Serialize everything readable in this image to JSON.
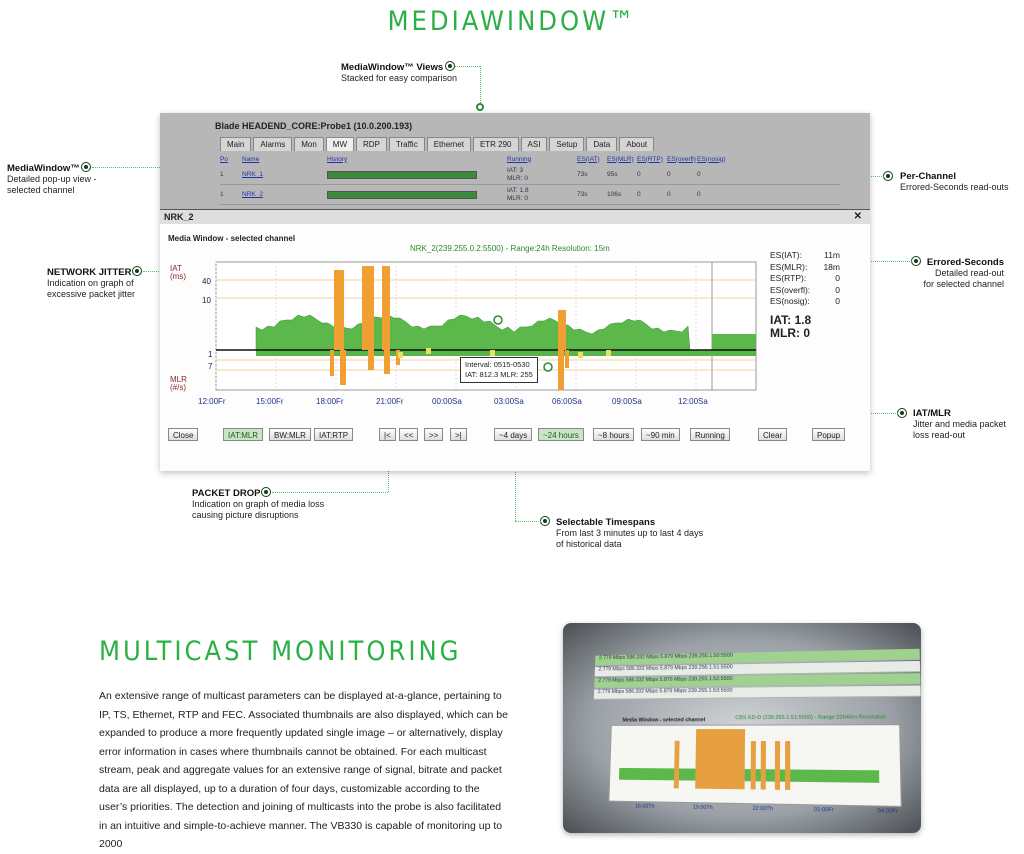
{
  "hero": {
    "title": "MEDIAWINDOW™"
  },
  "callouts": {
    "views": {
      "title": "MediaWindow™ Views",
      "text": "Stacked for easy comparison"
    },
    "popup": {
      "title": "MediaWindow™",
      "text1": "Detailed pop-up view -",
      "text2": "selected channel"
    },
    "jitter": {
      "title": "NETWORK JITTER",
      "text1": "Indication on graph of",
      "text2": "excessive packet jitter"
    },
    "perchannel": {
      "title": "Per-Channel",
      "text": "Errored-Seconds read-outs"
    },
    "errored": {
      "title": "Errored-Seconds",
      "text1": "Detailed read-out",
      "text2": "for selected channel"
    },
    "iatmlr": {
      "title": "IAT/MLR",
      "text1": "Jitter and media packet",
      "text2": "loss read-out"
    },
    "packetdrop": {
      "title": "PACKET DROP",
      "text1": "Indication on graph of media loss",
      "text2": "causing picture disruptions"
    },
    "timespans": {
      "title": "Selectable Timespans",
      "text1": "From last 3 minutes up to last 4 days",
      "text2": "of historical data"
    }
  },
  "window": {
    "title": "Blade HEADEND_CORE:Probe1 (10.0.200.193)",
    "tabs": [
      "Main",
      "Alarms",
      "Mon",
      "MW",
      "RDP",
      "Traffic",
      "Ethernet",
      "ETR 290",
      "ASI",
      "Setup",
      "Data",
      "About"
    ],
    "active_tab": "MW",
    "columns": [
      "Po",
      "Name",
      "History",
      "Running",
      "ES(IAT)",
      "ES(MLR)",
      "ES(RTP)",
      "ES(overfl)",
      "ES(nosig)"
    ],
    "rows": [
      {
        "po": "1",
        "name": "NRK_1",
        "running1": "IAT: 3",
        "running2": "MLR: 0",
        "es_iat": "73s",
        "es_mlr": "95s",
        "es_rtp": "0",
        "es_overfl": "0",
        "es_nosig": "0"
      },
      {
        "po": "1",
        "name": "NRK_2",
        "running1": "IAT: 1.8",
        "running2": "MLR: 0",
        "es_iat": "73s",
        "es_mlr": "106s",
        "es_rtp": "0",
        "es_overfl": "0",
        "es_nosig": "0"
      }
    ]
  },
  "popup": {
    "title": "NRK_2",
    "close": "✕",
    "subtitle": "Media Window - selected channel",
    "caption": "NRK_2(239.255.0.2:5500) - Range:24h Resolution: 15m",
    "y_labels": {
      "iat": "IAT",
      "ms": "(ms)",
      "v40": "40",
      "v10": "10",
      "v1": "1",
      "v7": "7",
      "mlr": "MLR",
      "ps": "(#/s)"
    },
    "x_ticks": [
      "12:00Fr",
      "15:00Fr",
      "18:00Fr",
      "21:00Fr",
      "00:00Sa",
      "03:00Sa",
      "06:00Sa",
      "09:00Sa",
      "12:00Sa"
    ],
    "tooltip": {
      "line1": "Interval: 0515-0530",
      "line2": "IAT: 812.3  MLR: 255"
    },
    "es": [
      {
        "k": "ES(IAT):",
        "v": "11m"
      },
      {
        "k": "ES(MLR):",
        "v": "18m"
      },
      {
        "k": "ES(RTP):",
        "v": "0"
      },
      {
        "k": "ES(overfl):",
        "v": "0"
      },
      {
        "k": "ES(nosig):",
        "v": "0"
      }
    ],
    "iat": "IAT: 1.8",
    "mlr": "MLR: 0",
    "buttons": {
      "close": "Close",
      "iat_mlr": "IAT:MLR",
      "bw_mlr": "BW:MLR",
      "iat_rtp": "IAT:RTP",
      "first": "|<",
      "prev": "<<",
      "next": ">>",
      "last": ">|",
      "d4": "~4 days",
      "h24": "~24 hours",
      "h8": "~8 hours",
      "m90": "~90 min",
      "running": "Running",
      "clear": "Clear",
      "popup": "Popup"
    }
  },
  "multicast": {
    "title": "MULTICAST MONITORING",
    "paragraph": "An extensive range of multicast parameters can be displayed at-a-glance, pertaining to IP, TS, Ethernet, RTP and FEC. Associated thumbnails are also displayed, which can be expanded to produce a more frequently updated single image – or alternatively, display error information in cases where thumbnails cannot be obtained. For each multicast stream, peak and aggregate values for an extensive range of signal, bitrate and packet data are all displayed, up to a duration of four days, customizable according to the user’s priorities. The detection and joining of multicasts into the probe is also facilitated in an intuitive and simple-to-achieve manner. The VB330 is capable of monitoring up to 2000"
  },
  "photo": {
    "rows": [
      "239.255.1.50:5500",
      "239.255.1.51:5500",
      "239.255.1.52:5500",
      "239.255.1.53:5500"
    ],
    "subtitle": "Media Window - selected channel",
    "caption": "CBS KD-D (239.255.1.51:5500) - Range:22h45m Resolution",
    "ticks": [
      "16:00Th",
      "19:00Th",
      "22:00Th",
      "01:00Fr",
      "04:00Fr"
    ]
  },
  "colors": {
    "accent": "#2bb045",
    "bar_green": "#5cb84a",
    "spike_orange": "#f0a033"
  }
}
